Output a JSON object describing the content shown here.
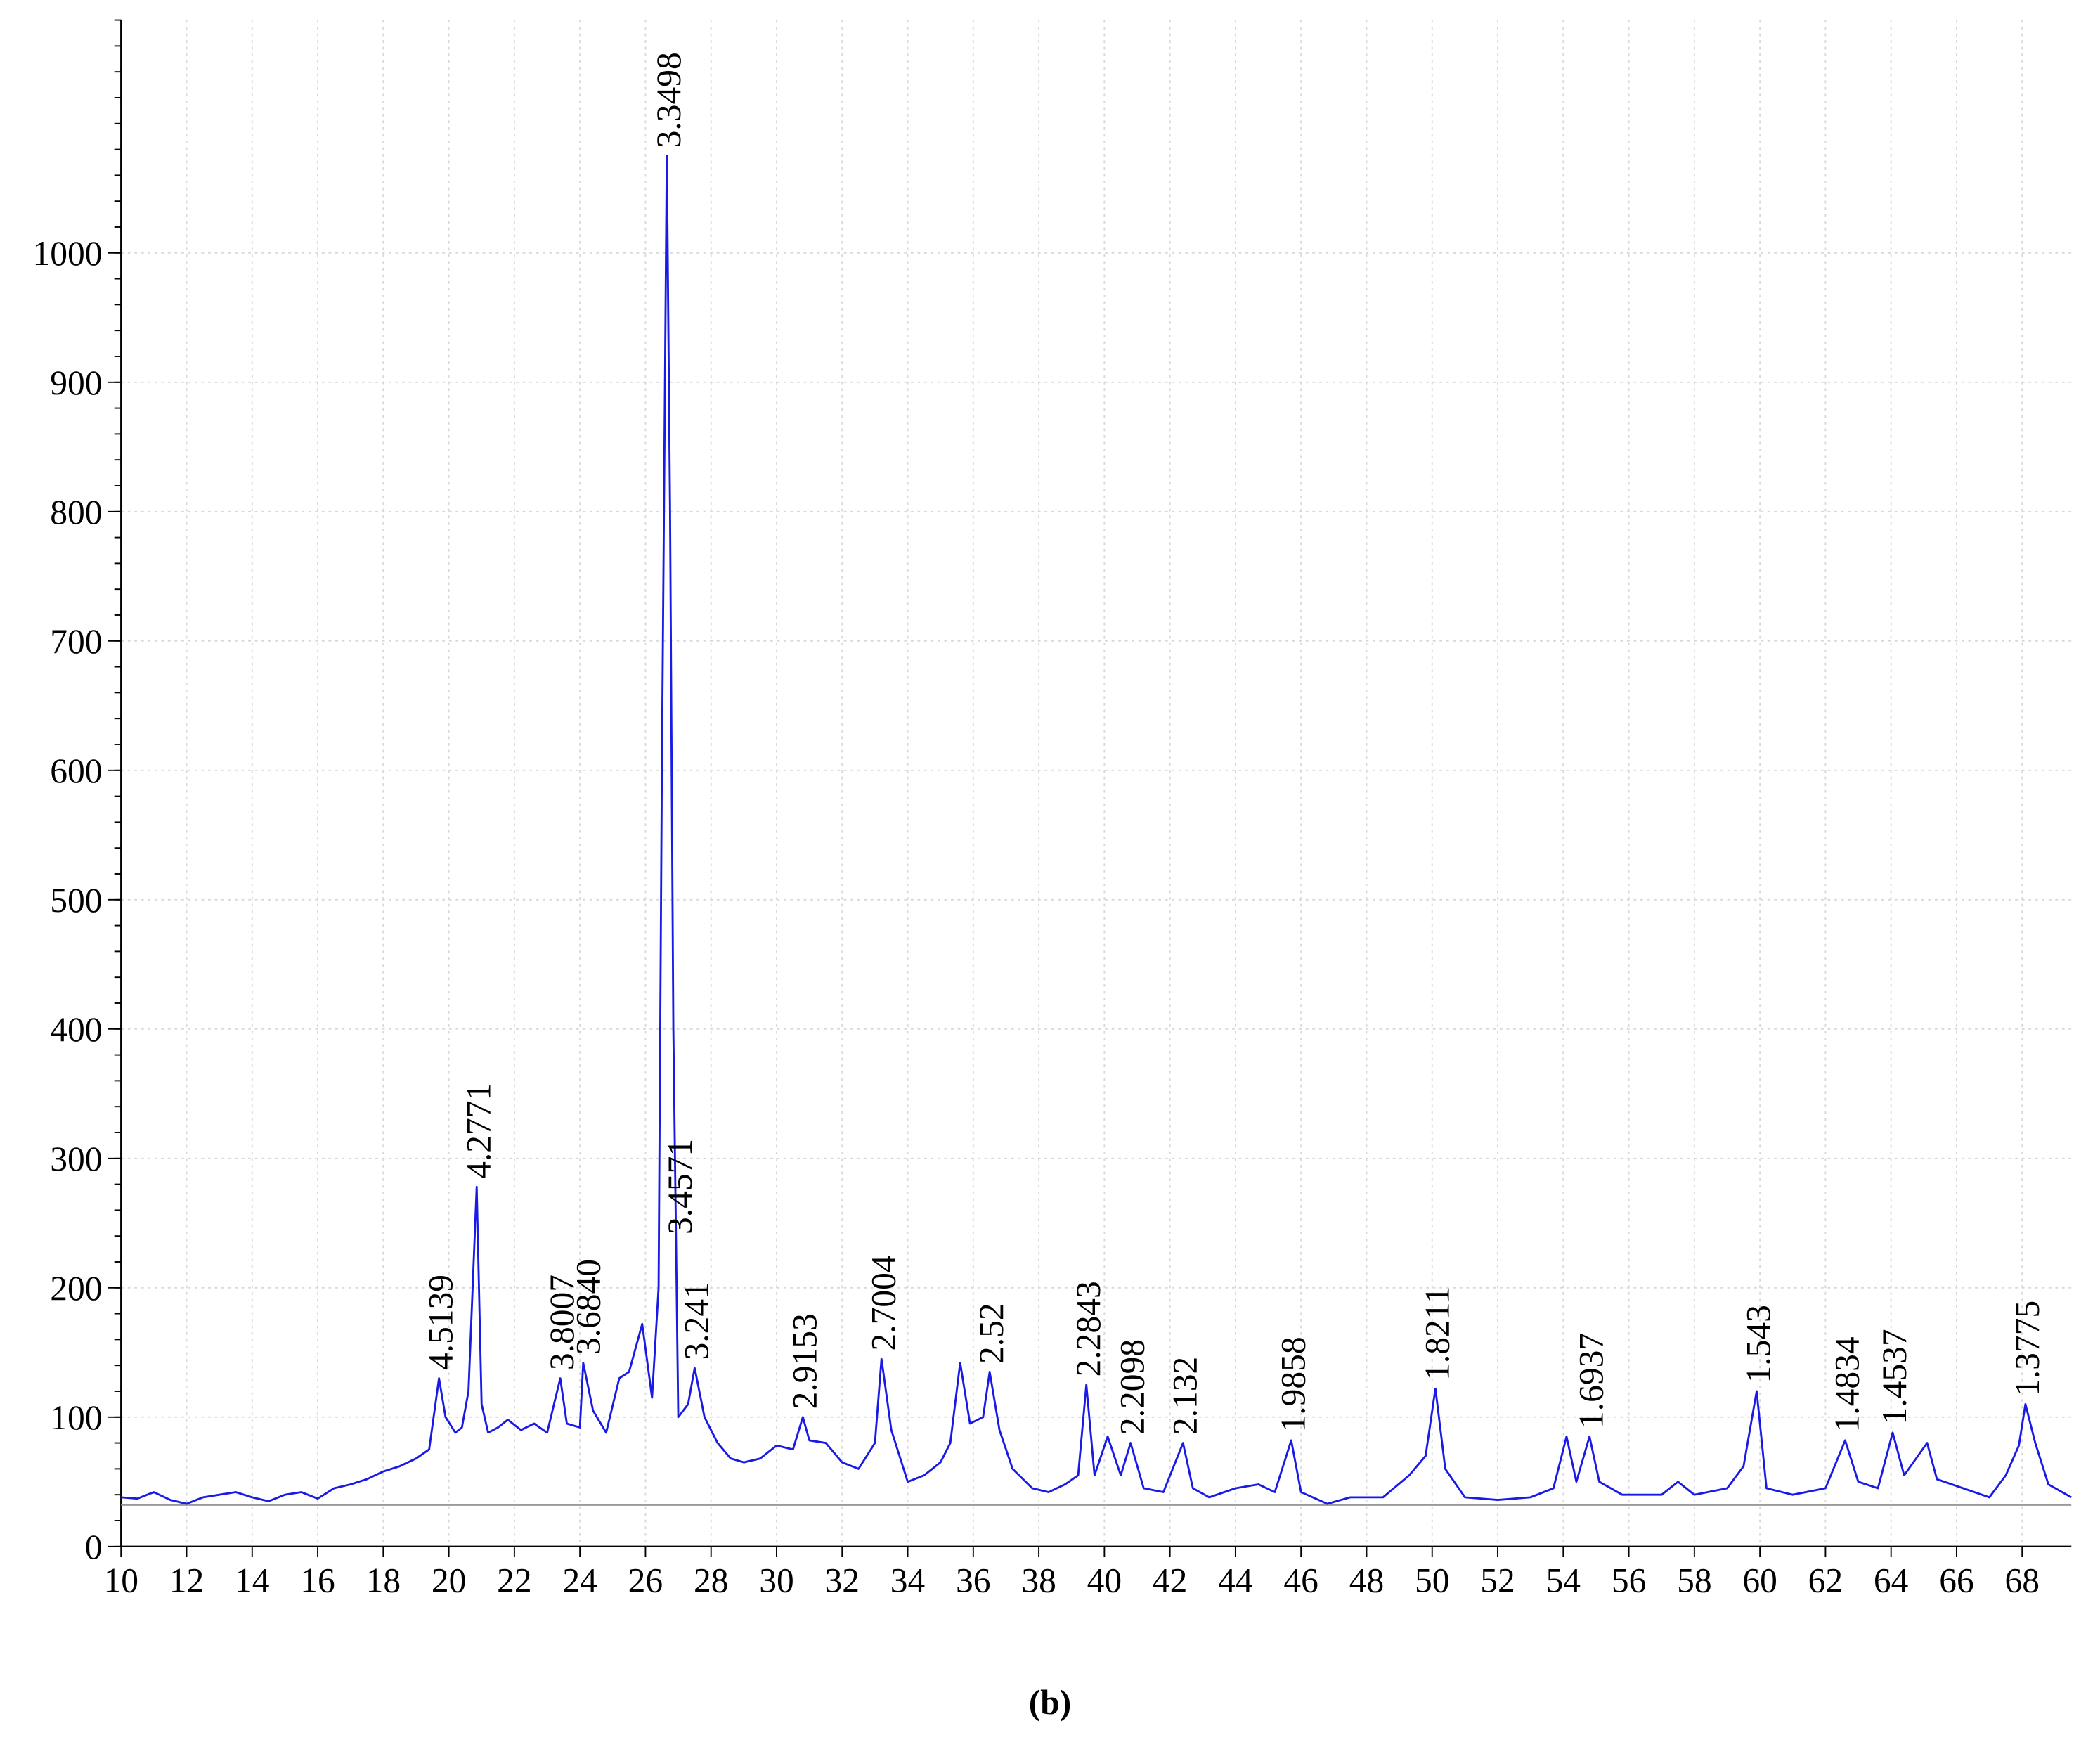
{
  "chart_data": {
    "type": "line",
    "caption": "(b)",
    "color": "#1a1ae6",
    "grid": true,
    "baseline": 32,
    "xlim": [
      10,
      69.5
    ],
    "ylim": [
      0,
      1180
    ],
    "xticks": [
      10,
      12,
      14,
      16,
      18,
      20,
      22,
      24,
      26,
      28,
      30,
      32,
      34,
      36,
      38,
      40,
      42,
      44,
      46,
      48,
      50,
      52,
      54,
      56,
      58,
      60,
      62,
      64,
      66,
      68
    ],
    "yticks": [
      0,
      100,
      200,
      300,
      400,
      500,
      600,
      700,
      800,
      900,
      1000
    ],
    "x": [
      10,
      10.5,
      11,
      11.5,
      12,
      12.5,
      13,
      13.5,
      14,
      14.5,
      15,
      15.5,
      16,
      16.5,
      17,
      17.5,
      18,
      18.5,
      19,
      19.4,
      19.7,
      19.9,
      20.2,
      20.4,
      20.6,
      20.85,
      21.0,
      21.2,
      21.5,
      21.8,
      22.2,
      22.6,
      23,
      23.4,
      23.6,
      24,
      24.1,
      24.4,
      24.8,
      25.2,
      25.5,
      25.9,
      26.2,
      26.4,
      26.5,
      26.65,
      26.75,
      26.85,
      27.0,
      27.3,
      27.5,
      27.8,
      28.2,
      28.6,
      29,
      29.5,
      30,
      30.5,
      30.8,
      31,
      31.5,
      32,
      32.5,
      33,
      33.2,
      33.5,
      34,
      34.5,
      35,
      35.3,
      35.6,
      35.9,
      36.3,
      36.5,
      36.8,
      37.2,
      37.8,
      38.3,
      38.8,
      39.2,
      39.45,
      39.7,
      40.1,
      40.5,
      40.8,
      41.2,
      41.8,
      42.4,
      42.7,
      43.2,
      44,
      44.7,
      45.2,
      45.7,
      46,
      46.8,
      47.5,
      48.5,
      49.3,
      49.8,
      50.1,
      50.4,
      51,
      52,
      53,
      53.7,
      54.1,
      54.4,
      54.8,
      55.1,
      55.8,
      57,
      57.5,
      58,
      59,
      59.5,
      59.9,
      60.2,
      61,
      62,
      62.6,
      63,
      63.6,
      64.05,
      64.4,
      65.1,
      65.4,
      66.2,
      67,
      67.5,
      67.9,
      68.1,
      68.4,
      68.8,
      69.5
    ],
    "values": [
      38,
      37,
      42,
      36,
      33,
      38,
      40,
      42,
      38,
      35,
      40,
      42,
      37,
      45,
      48,
      52,
      58,
      62,
      68,
      75,
      130,
      100,
      88,
      92,
      120,
      278,
      110,
      88,
      92,
      98,
      90,
      95,
      88,
      130,
      95,
      92,
      142,
      105,
      88,
      130,
      135,
      172,
      115,
      200,
      600,
      1075,
      800,
      400,
      100,
      110,
      138,
      100,
      80,
      68,
      65,
      68,
      78,
      75,
      100,
      82,
      80,
      65,
      60,
      80,
      145,
      90,
      50,
      55,
      65,
      80,
      142,
      95,
      100,
      135,
      90,
      60,
      45,
      42,
      48,
      55,
      125,
      55,
      85,
      55,
      80,
      45,
      42,
      80,
      45,
      38,
      45,
      48,
      42,
      82,
      42,
      33,
      38,
      38,
      55,
      70,
      122,
      60,
      38,
      36,
      38,
      45,
      85,
      50,
      85,
      50,
      40,
      40,
      50,
      40,
      45,
      62,
      120,
      45,
      40,
      45,
      82,
      50,
      45,
      88,
      55,
      80,
      52,
      45,
      38,
      55,
      78,
      110,
      80,
      48,
      38
    ],
    "annotations": [
      {
        "x": 19.7,
        "y": 130,
        "label": "4.5139"
      },
      {
        "x": 20.85,
        "y": 278,
        "label": "4.2771"
      },
      {
        "x": 23.4,
        "y": 130,
        "label": "3.8007"
      },
      {
        "x": 24.2,
        "y": 142,
        "label": "3.6840"
      },
      {
        "x": 27.0,
        "y": 235,
        "label": "3.4571"
      },
      {
        "x": 26.65,
        "y": 1075,
        "label": "3.3498"
      },
      {
        "x": 27.5,
        "y": 138,
        "label": "3.241"
      },
      {
        "x": 30.8,
        "y": 100,
        "label": "2.9153"
      },
      {
        "x": 33.2,
        "y": 145,
        "label": "2.7004"
      },
      {
        "x": 36.5,
        "y": 135,
        "label": "2.52"
      },
      {
        "x": 39.45,
        "y": 125,
        "label": "2.2843"
      },
      {
        "x": 40.8,
        "y": 80,
        "label": "2.2098"
      },
      {
        "x": 42.4,
        "y": 80,
        "label": "2.132"
      },
      {
        "x": 45.7,
        "y": 82,
        "label": "1.9858"
      },
      {
        "x": 50.1,
        "y": 122,
        "label": "1.8211"
      },
      {
        "x": 54.8,
        "y": 85,
        "label": "1.6937"
      },
      {
        "x": 59.9,
        "y": 120,
        "label": "1.543"
      },
      {
        "x": 62.6,
        "y": 82,
        "label": "1.4834"
      },
      {
        "x": 64.05,
        "y": 88,
        "label": "1.4537"
      },
      {
        "x": 68.1,
        "y": 110,
        "label": "1.3775"
      }
    ]
  }
}
